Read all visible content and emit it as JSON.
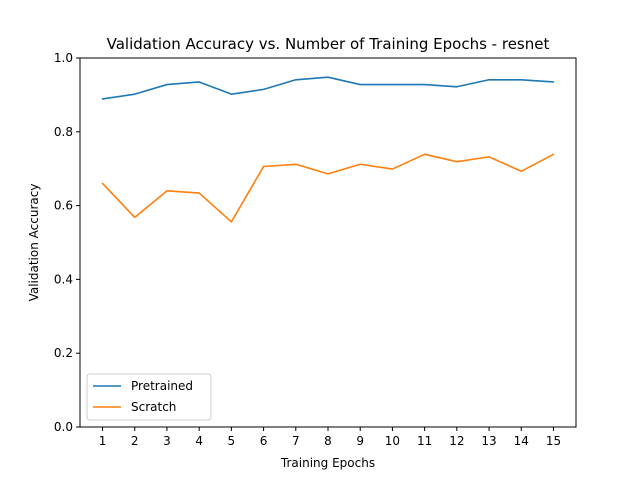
{
  "chart_data": {
    "type": "line",
    "title": "Validation Accuracy vs. Number of Training Epochs - resnet",
    "xlabel": "Training Epochs",
    "ylabel": "Validation Accuracy",
    "x": [
      1,
      2,
      3,
      4,
      5,
      6,
      7,
      8,
      9,
      10,
      11,
      12,
      13,
      14,
      15
    ],
    "xticks": [
      "1",
      "2",
      "3",
      "4",
      "5",
      "6",
      "7",
      "8",
      "9",
      "10",
      "11",
      "12",
      "13",
      "14",
      "15"
    ],
    "yticks": [
      "0.0",
      "0.2",
      "0.4",
      "0.6",
      "0.8",
      "1.0"
    ],
    "ylim": [
      0,
      1
    ],
    "xlim": [
      0.3,
      15.7
    ],
    "grid": false,
    "legend_position": "lower-left",
    "series": [
      {
        "name": "Pretrained",
        "color": "#1f77b4",
        "values": [
          0.889,
          0.902,
          0.928,
          0.935,
          0.902,
          0.915,
          0.941,
          0.948,
          0.928,
          0.928,
          0.928,
          0.922,
          0.941,
          0.941,
          0.935
        ]
      },
      {
        "name": "Scratch",
        "color": "#ff7f0e",
        "values": [
          0.66,
          0.568,
          0.64,
          0.634,
          0.556,
          0.706,
          0.712,
          0.686,
          0.712,
          0.699,
          0.739,
          0.719,
          0.732,
          0.693,
          0.739
        ]
      }
    ]
  }
}
